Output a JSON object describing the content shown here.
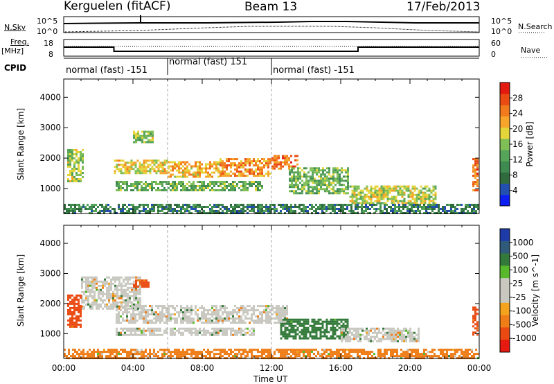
{
  "header": {
    "title": "Kerguelen (fitACF)",
    "beam": "Beam 13",
    "date": "17/Feb/2013"
  },
  "sky_panel": {
    "left_label": "N.Sky",
    "right_label": "N.Search",
    "left_ticks": [
      "10^5",
      "10^0"
    ],
    "right_ticks": [
      "10^5",
      "10^0"
    ]
  },
  "freq_panel": {
    "left_label_line1": "Freq.",
    "left_label_line2": "[MHz]",
    "right_label": "Nave",
    "left_ticks": [
      "18",
      "8"
    ],
    "right_ticks": [
      "60",
      "0"
    ]
  },
  "cpid": {
    "label": "CPID",
    "segments": [
      {
        "text": "normal (fast) -151",
        "start_hour": 0
      },
      {
        "text": "normal (fast) 151",
        "start_hour": 6
      },
      {
        "text": "normal (fast) -151",
        "start_hour": 12
      }
    ]
  },
  "x_axis": {
    "label": "Time UT",
    "ticks": [
      "00:00",
      "04:00",
      "08:00",
      "12:00",
      "16:00",
      "20:00",
      "00:00"
    ]
  },
  "colors": {
    "power": [
      "#0d1ef2",
      "#234fb0",
      "#2f6b3c",
      "#3f8a50",
      "#56a35a",
      "#7fbf55",
      "#e4d53a",
      "#f6a52a",
      "#f17a1d",
      "#ea4b13",
      "#e41a10"
    ],
    "velocity": [
      "#1e3ba8",
      "#2f5a7a",
      "#337a3a",
      "#58b92c",
      "#c8c8c0",
      "#c8c8c0",
      "#f3a31e",
      "#ef7d18",
      "#ea4a12",
      "#e61a10"
    ]
  },
  "chart_data": [
    {
      "type": "heatmap",
      "title": "Power",
      "xlabel": "",
      "ylabel": "Slant Range [km]",
      "xlim": [
        0,
        24
      ],
      "ylim": [
        180,
        4600
      ],
      "yticks": [
        1000,
        2000,
        3000,
        4000
      ],
      "colorbar": {
        "label": "Power [dB]",
        "ticks": [
          "4",
          "8",
          "12",
          "16",
          "20",
          "24",
          "28"
        ],
        "range": [
          0,
          32
        ]
      },
      "bands": [
        {
          "h0": 2.9,
          "h1": 6.0,
          "r0": 1450,
          "r1": 1950,
          "v": 20
        },
        {
          "h0": 6.0,
          "h1": 9.0,
          "r0": 1350,
          "r1": 1900,
          "v": 22
        },
        {
          "h0": 9.0,
          "h1": 12.0,
          "r0": 1400,
          "r1": 2000,
          "v": 24
        },
        {
          "h0": 12.0,
          "h1": 13.5,
          "r0": 1600,
          "r1": 2100,
          "v": 26
        },
        {
          "h0": 3.0,
          "h1": 11.5,
          "r0": 900,
          "r1": 1250,
          "v": 14
        },
        {
          "h0": 13.0,
          "h1": 16.5,
          "r0": 800,
          "r1": 1700,
          "v": 14
        },
        {
          "h0": 16.5,
          "h1": 21.5,
          "r0": 500,
          "r1": 1100,
          "v": 18
        },
        {
          "h0": 0.2,
          "h1": 1.2,
          "r0": 1200,
          "r1": 2300,
          "v": 16
        },
        {
          "h0": 23.6,
          "h1": 24.0,
          "r0": 900,
          "r1": 2000,
          "v": 26
        },
        {
          "h0": 4.0,
          "h1": 5.2,
          "r0": 2500,
          "r1": 2900,
          "v": 16
        },
        {
          "h0": 0.0,
          "h1": 24.0,
          "r0": 180,
          "r1": 500,
          "v": 8
        }
      ]
    },
    {
      "type": "heatmap",
      "title": "Velocity",
      "xlabel": "Time UT",
      "ylabel": "Slant Range [km]",
      "xlim": [
        0,
        24
      ],
      "ylim": [
        180,
        4600
      ],
      "yticks": [
        1000,
        2000,
        3000,
        4000
      ],
      "colorbar": {
        "label": "Velocity [m s^-1]",
        "ticks": [
          "1000",
          "500",
          "100",
          "25",
          "-25",
          "-100",
          "-500",
          "-1000"
        ],
        "range": [
          -1000,
          1000
        ]
      },
      "bands": [
        {
          "h0": 3.0,
          "h1": 13.0,
          "r0": 1350,
          "r1": 1950,
          "v": 0
        },
        {
          "h0": 3.0,
          "h1": 11.0,
          "r0": 900,
          "r1": 1200,
          "v": 0
        },
        {
          "h0": 1.0,
          "h1": 4.5,
          "r0": 1800,
          "r1": 2900,
          "v": 0
        },
        {
          "h0": 12.5,
          "h1": 16.5,
          "r0": 800,
          "r1": 1500,
          "v": 150
        },
        {
          "h0": 16.0,
          "h1": 20.5,
          "r0": 700,
          "r1": 1200,
          "v": 0
        },
        {
          "h0": 0.2,
          "h1": 1.0,
          "r0": 1200,
          "r1": 2300,
          "v": -300
        },
        {
          "h0": 23.6,
          "h1": 24.0,
          "r0": 900,
          "r1": 1900,
          "v": -300
        },
        {
          "h0": 4.0,
          "h1": 5.0,
          "r0": 2500,
          "r1": 2800,
          "v": -300
        },
        {
          "h0": 0.0,
          "h1": 24.0,
          "r0": 180,
          "r1": 500,
          "v": -80
        }
      ]
    }
  ]
}
